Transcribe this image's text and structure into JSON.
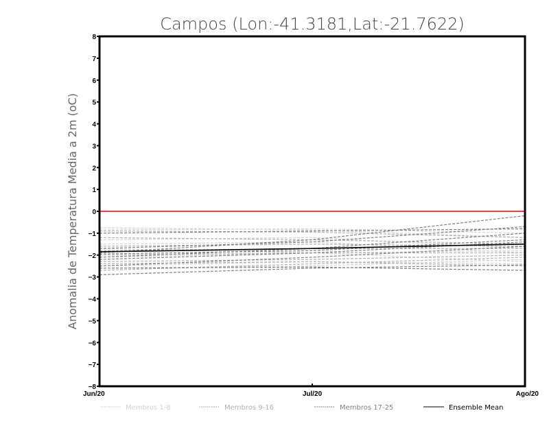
{
  "chart_data": {
    "type": "line",
    "title": "Campos (Lon:-41.3181,Lat:-21.7622)",
    "xlabel": "",
    "ylabel": "Anomalia de Temperatura Media a 2m (oC)",
    "x": [
      "Jun/20",
      "Jul/20",
      "Ago/20"
    ],
    "ylim": [
      -8,
      8
    ],
    "yticks": [
      8,
      7,
      6,
      5,
      4,
      3,
      2,
      1,
      0,
      -1,
      -2,
      -3,
      -4,
      -5,
      -6,
      -7,
      -8
    ],
    "reference_line": {
      "value": 0,
      "color": "#ff3b3b"
    },
    "groups": [
      {
        "name": "Membros 1-8",
        "color": "#d2d2d2",
        "style": "dashed",
        "members": [
          [
            -0.75,
            -0.85,
            -1.2
          ],
          [
            -0.85,
            -0.8,
            -1.0
          ],
          [
            -1.3,
            -1.2,
            -1.7
          ],
          [
            -1.7,
            -1.9,
            -2.3
          ],
          [
            -2.1,
            -1.9,
            -1.8
          ],
          [
            -2.5,
            -2.3,
            -2.4
          ],
          [
            -1.5,
            -1.4,
            -1.9
          ],
          [
            -2.6,
            -2.5,
            -2.2
          ]
        ]
      },
      {
        "name": "Membros 9-16",
        "color": "#b0b0b0",
        "style": "dashed",
        "members": [
          [
            -0.9,
            -0.95,
            -1.2
          ],
          [
            -1.2,
            -1.3,
            -1.5
          ],
          [
            -1.6,
            -1.5,
            -1.6
          ],
          [
            -2.0,
            -1.9,
            -1.9
          ],
          [
            -2.3,
            -2.2,
            -2.0
          ],
          [
            -2.7,
            -2.4,
            -2.1
          ],
          [
            -1.8,
            -1.7,
            -1.7
          ],
          [
            -2.4,
            -2.3,
            -2.5
          ]
        ]
      },
      {
        "name": "Membros 17-25",
        "color": "#808080",
        "style": "dashed",
        "members": [
          [
            -1.0,
            -0.9,
            -0.8
          ],
          [
            -1.9,
            -1.3,
            -0.2
          ],
          [
            -1.7,
            -1.4,
            -0.7
          ],
          [
            -2.1,
            -1.7,
            -1.0
          ],
          [
            -2.2,
            -1.9,
            -1.4
          ],
          [
            -2.5,
            -2.1,
            -1.6
          ],
          [
            -2.9,
            -2.6,
            -2.45
          ],
          [
            -2.6,
            -2.55,
            -2.7
          ],
          [
            -1.95,
            -1.8,
            -1.3
          ]
        ]
      }
    ],
    "ensemble_mean": {
      "name": "Ensemble Mean",
      "color": "#000000",
      "values": [
        -1.85,
        -1.7,
        -1.5
      ]
    },
    "legend_position": "bottom"
  }
}
